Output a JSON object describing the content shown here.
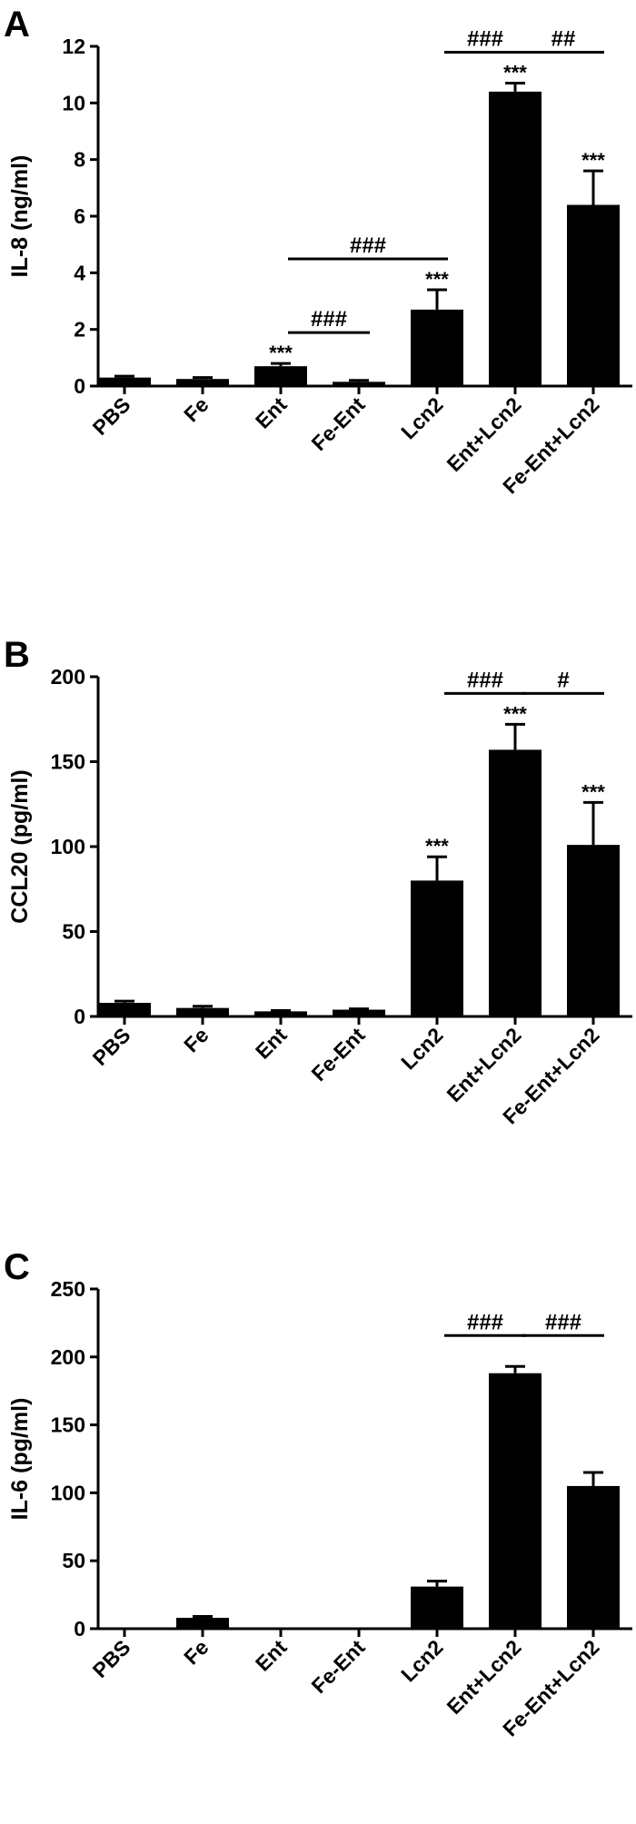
{
  "chart_data": [
    {
      "type": "bar",
      "panel": "A",
      "ylabel": "IL-8 (ng/ml)",
      "color": "#000000",
      "categories": [
        "PBS",
        "Fe",
        "Ent",
        "Fe-Ent",
        "Lcn2",
        "Ent+Lcn2",
        "Fe-Ent+Lcn2"
      ],
      "values": [
        0.3,
        0.25,
        0.7,
        0.15,
        2.7,
        10.4,
        6.4
      ],
      "errors": [
        0.05,
        0.05,
        0.1,
        0.05,
        0.7,
        0.3,
        1.2
      ],
      "significance": [
        null,
        null,
        "***",
        null,
        "***",
        "***",
        "***"
      ],
      "comparisons": [
        {
          "from": "Ent",
          "to": "Fe-Ent",
          "label": "###"
        },
        {
          "from": "Ent",
          "to": "Lcn2",
          "label": "###"
        },
        {
          "from": "Lcn2",
          "to": "Ent+Lcn2",
          "label": "###"
        },
        {
          "from": "Ent+Lcn2",
          "to": "Fe-Ent+Lcn2",
          "label": "##"
        }
      ],
      "ylim": [
        0,
        12
      ],
      "yticks": [
        0,
        2,
        4,
        6,
        8,
        10,
        12
      ]
    },
    {
      "type": "bar",
      "panel": "B",
      "ylabel": "CCL20 (pg/ml)",
      "color": "#000000",
      "categories": [
        "PBS",
        "Fe",
        "Ent",
        "Fe-Ent",
        "Lcn2",
        "Ent+Lcn2",
        "Fe-Ent+Lcn2"
      ],
      "values": [
        8,
        5,
        3,
        4,
        80,
        157,
        101
      ],
      "errors": [
        1,
        1,
        0.5,
        0.5,
        14,
        15,
        25
      ],
      "significance": [
        null,
        null,
        null,
        null,
        "***",
        "***",
        "***"
      ],
      "comparisons": [
        {
          "from": "Lcn2",
          "to": "Ent+Lcn2",
          "label": "###"
        },
        {
          "from": "Ent+Lcn2",
          "to": "Fe-Ent+Lcn2",
          "label": "#"
        }
      ],
      "ylim": [
        0,
        200
      ],
      "yticks": [
        0,
        50,
        100,
        150,
        200
      ]
    },
    {
      "type": "bar",
      "panel": "C",
      "ylabel": "IL-6 (pg/ml)",
      "color": "#000000",
      "categories": [
        "PBS",
        "Fe",
        "Ent",
        "Fe-Ent",
        "Lcn2",
        "Ent+Lcn2",
        "Fe-Ent+Lcn2"
      ],
      "values": [
        0,
        8,
        0,
        0,
        31,
        188,
        105
      ],
      "errors": [
        0,
        1,
        0,
        0,
        4,
        5,
        10
      ],
      "significance": [
        null,
        null,
        null,
        null,
        null,
        null,
        null
      ],
      "comparisons": [
        {
          "from": "Lcn2",
          "to": "Ent+Lcn2",
          "label": "###"
        },
        {
          "from": "Ent+Lcn2",
          "to": "Fe-Ent+Lcn2",
          "label": "###"
        }
      ],
      "ylim": [
        0,
        250
      ],
      "yticks": [
        0,
        50,
        100,
        150,
        200,
        250
      ]
    }
  ]
}
